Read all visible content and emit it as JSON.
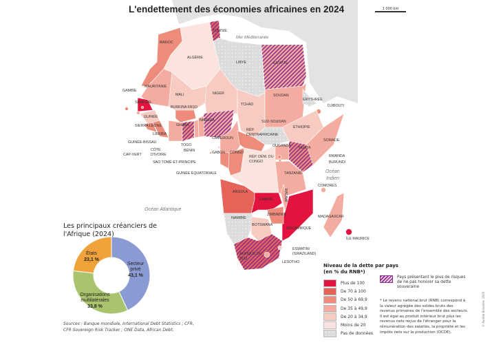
{
  "title": "L'endettement des économies africaines en 2024",
  "scale_label": "1 000 km",
  "seas": {
    "med": "Mer Méditerranée",
    "atlantic": "Océan Atlantique",
    "indian_1": "Océan",
    "indian_2": "Indien"
  },
  "colors": {
    "lvl6": "#e2143f",
    "lvl5": "#e6635a",
    "lvl4": "#ee8c7b",
    "lvl3": "#f3ac9f",
    "lvl2": "#f7cbc2",
    "lvl1": "#fbe4dd",
    "nodata": "#dcdcdc",
    "hatch": "#8b2f8f",
    "land_other": "#e3e3e3"
  },
  "countries": [
    {
      "name": "MAROC",
      "level": "lvl4"
    },
    {
      "name": "ALGÉRIE",
      "level": "lvl1"
    },
    {
      "name": "TUNISIE",
      "level": "lvl5",
      "risk": true
    },
    {
      "name": "LIBYE",
      "level": "nodata"
    },
    {
      "name": "ÉGYPTE",
      "level": "lvl3",
      "risk": true
    },
    {
      "name": "MAURITANIE",
      "level": "lvl3"
    },
    {
      "name": "MALI",
      "level": "lvl2"
    },
    {
      "name": "NIGER",
      "level": "lvl2"
    },
    {
      "name": "TCHAD",
      "level": "lvl2"
    },
    {
      "name": "SOUDAN",
      "level": "lvl3"
    },
    {
      "name": "ÉRYTHRÉE",
      "level": "nodata"
    },
    {
      "name": "DJIBOUTI",
      "level": "lvl4"
    },
    {
      "name": "ÉTHIOPIE",
      "level": "lvl2"
    },
    {
      "name": "SOMALIE",
      "level": "lvl3"
    },
    {
      "name": "SUD-SOUDAN",
      "level": "nodata"
    },
    {
      "name": "SÉNÉGAL",
      "level": "lvl6"
    },
    {
      "name": "GAMBIE",
      "level": "lvl4"
    },
    {
      "name": "GUINÉE-BISSAU",
      "level": "lvl3"
    },
    {
      "name": "GUINÉE",
      "level": "lvl2"
    },
    {
      "name": "SIERRA LEONE",
      "level": "lvl4"
    },
    {
      "name": "LIBERIA",
      "level": "lvl4"
    },
    {
      "name": "CÔTE D'IVOIRE",
      "level": "lvl3"
    },
    {
      "name": "BURKINA FASO",
      "level": "lvl4"
    },
    {
      "name": "GHANA",
      "level": "lvl4",
      "risk": true
    },
    {
      "name": "TOGO",
      "level": "lvl3"
    },
    {
      "name": "BÉNIN",
      "level": "lvl3"
    },
    {
      "name": "NIGERIA",
      "level": "lvl3",
      "risk": true
    },
    {
      "name": "CAMEROUN",
      "level": "lvl3"
    },
    {
      "name": "RÉP. CENTRAFRICAINE",
      "level": "lvl4"
    },
    {
      "name": "GABON",
      "level": "lvl4"
    },
    {
      "name": "CONGO",
      "level": "lvl4"
    },
    {
      "name": "RÉP. DÉM. DU CONGO",
      "level": "lvl1"
    },
    {
      "name": "OUGANDA",
      "level": "lvl3"
    },
    {
      "name": "KENYA",
      "level": "lvl4",
      "risk": true
    },
    {
      "name": "RWANDA",
      "level": "lvl4"
    },
    {
      "name": "BURUNDI",
      "level": "lvl4"
    },
    {
      "name": "TANZANIE",
      "level": "lvl3"
    },
    {
      "name": "ANGOLA",
      "level": "lvl5"
    },
    {
      "name": "ZAMBIE",
      "level": "lvl6"
    },
    {
      "name": "MALAWI",
      "level": "lvl3"
    },
    {
      "name": "MOZAMBIQUE",
      "level": "lvl6"
    },
    {
      "name": "ZIMBABWE",
      "level": "lvl4"
    },
    {
      "name": "NAMIBIE",
      "level": "nodata"
    },
    {
      "name": "BOTSWANA",
      "level": "lvl2"
    },
    {
      "name": "AFRIQUE DU SUD",
      "level": "lvl5",
      "risk": true
    },
    {
      "name": "MADAGASCAR",
      "level": "lvl3"
    },
    {
      "name": "ÎLE MAURICE",
      "level": "lvl6"
    },
    {
      "name": "COMORES",
      "level": "lvl3"
    },
    {
      "name": "CAP-VERT",
      "level": "lvl4"
    },
    {
      "name": "SAO TOMÉ-ET-PRINCIPE",
      "level": "lvl4"
    },
    {
      "name": "GUINÉE ÉQUATORIALE",
      "level": "lvl2"
    },
    {
      "name": "ESWATINI (SWAZILAND)",
      "level": "lvl2"
    },
    {
      "name": "LESOTHO",
      "level": "lvl3"
    }
  ],
  "donut": {
    "title": "Les principaux créanciers de l'Afrique (2024)",
    "slices": [
      {
        "label": "Secteur privé",
        "value": 43.1,
        "value_label": "43,1 %",
        "color": "#8a9bd3"
      },
      {
        "label": "Organisations multilatérales",
        "value": 33.8,
        "value_label": "33,8 %",
        "color": "#a9c46c"
      },
      {
        "label": "États",
        "value": 23.1,
        "value_label": "23,1 %",
        "color": "#f0a33a"
      }
    ]
  },
  "sources": "Sources : Banque mondiale, International Debt Statistics ; CFR, CFR Sovereign Risk Tracker ; ONE Data, African Debt.",
  "legend": {
    "title_1": "Niveau de la dette par pays",
    "title_2": "(en % du RNB*)",
    "items": [
      {
        "label": "Plus de 100",
        "color": "#e2143f"
      },
      {
        "label": "De 70 à 100",
        "color": "#e6635a"
      },
      {
        "label": "De 50 à 69,9",
        "color": "#ee8c7b"
      },
      {
        "label": "De 35 à 49,9",
        "color": "#f3ac9f"
      },
      {
        "label": "De 20 à 34,9",
        "color": "#f7cbc2"
      },
      {
        "label": "Moins de 20",
        "color": "#fbe4dd"
      },
      {
        "label": "Pas de données",
        "color": "#dcdcdc"
      }
    ],
    "risk_label": "Pays présentant le plus de risques de ne pas honorer sa dette souveraine"
  },
  "note": "* Le revenu national brut (RNB) correspond à la valeur agrégée des soldes bruts des revenus primaires de l'ensemble des secteurs. Il est égal au produit intérieur brut plus les revenus nets reçus de l'étranger pour la rémunération des salariés, la propriété et les impôts nets sur la production (OCDE).",
  "credit": "© Aurélie Boissière, 2025"
}
